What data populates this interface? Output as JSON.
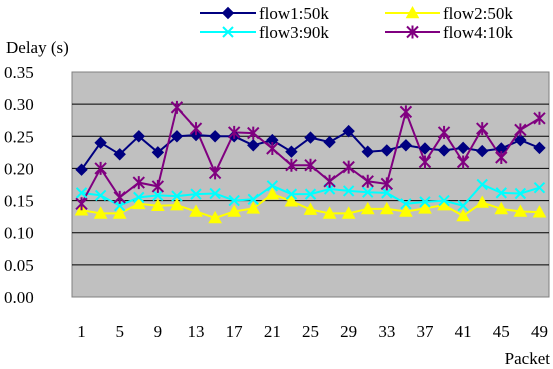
{
  "chart_data": {
    "type": "line",
    "title": "",
    "ylabel": "Delay (s)",
    "xlabel": "Packet",
    "ylim": [
      0,
      0.35
    ],
    "yticks": [
      "0.00",
      "0.05",
      "0.10",
      "0.15",
      "0.20",
      "0.25",
      "0.30",
      "0.35"
    ],
    "x": [
      1,
      3,
      5,
      7,
      9,
      11,
      13,
      15,
      17,
      19,
      21,
      23,
      25,
      27,
      29,
      31,
      33,
      35,
      37,
      39,
      41,
      43,
      45,
      47,
      49
    ],
    "xticks": [
      "1",
      "5",
      "9",
      "13",
      "17",
      "21",
      "25",
      "29",
      "33",
      "37",
      "41",
      "45",
      "49"
    ],
    "grid": true,
    "plot_background": "#c0c0c0",
    "legend_position": "top",
    "series": [
      {
        "name": "flow1:50k",
        "color": "#000080",
        "marker": "diamond",
        "values": [
          0.198,
          0.24,
          0.222,
          0.25,
          0.225,
          0.25,
          0.252,
          0.25,
          0.25,
          0.236,
          0.244,
          0.226,
          0.248,
          0.241,
          0.258,
          0.226,
          0.228,
          0.236,
          0.231,
          0.228,
          0.232,
          0.227,
          0.231,
          0.244,
          0.232
        ]
      },
      {
        "name": "flow2:50k",
        "color": "#ffff00",
        "marker": "triangle",
        "values": [
          0.135,
          0.13,
          0.13,
          0.145,
          0.142,
          0.143,
          0.133,
          0.123,
          0.133,
          0.138,
          0.16,
          0.149,
          0.136,
          0.13,
          0.13,
          0.137,
          0.137,
          0.133,
          0.138,
          0.143,
          0.126,
          0.147,
          0.137,
          0.133,
          0.132
        ]
      },
      {
        "name": "flow3:90k",
        "color": "#00ffff",
        "marker": "x",
        "values": [
          0.162,
          0.158,
          0.142,
          0.155,
          0.158,
          0.157,
          0.16,
          0.161,
          0.15,
          0.152,
          0.173,
          0.16,
          0.16,
          0.168,
          0.165,
          0.163,
          0.162,
          0.145,
          0.148,
          0.15,
          0.142,
          0.175,
          0.162,
          0.161,
          0.17
        ]
      },
      {
        "name": "flow4:10k",
        "color": "#800080",
        "marker": "star",
        "values": [
          0.145,
          0.2,
          0.155,
          0.178,
          0.172,
          0.295,
          0.262,
          0.193,
          0.256,
          0.255,
          0.231,
          0.205,
          0.205,
          0.18,
          0.202,
          0.18,
          0.176,
          0.288,
          0.21,
          0.256,
          0.21,
          0.262,
          0.217,
          0.26,
          0.278
        ]
      }
    ]
  }
}
